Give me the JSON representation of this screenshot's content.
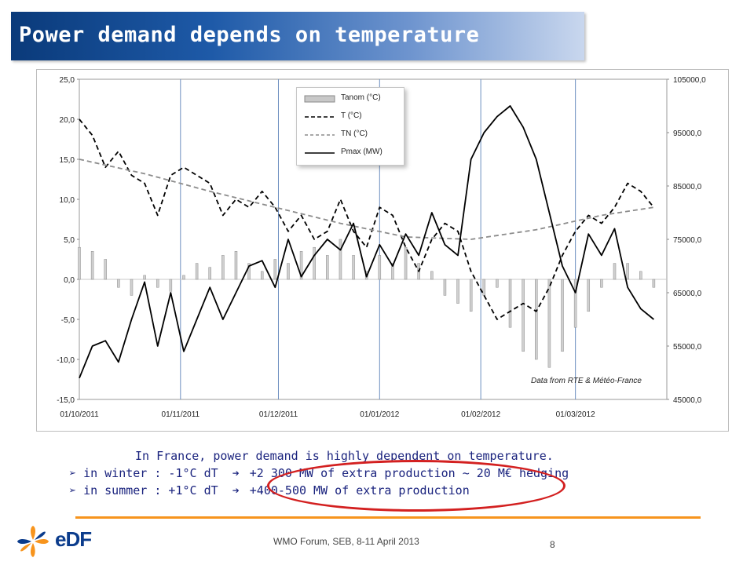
{
  "slide": {
    "title": "Power demand depends on temperature",
    "caption_line": "In France, power demand is highly dependent on temperature.",
    "bullets": [
      "in winter : -1°C dT",
      "+2 300 MW of extra production",
      "~ 20 M€ hedging",
      "in summer : +1°C dT",
      "+400-500 MW of extra production"
    ],
    "footer": "WMO Forum, SEB, 8-11 April 2013",
    "page_number": "8",
    "logo_text": "eDF",
    "source_note": "Data from RTE & Météo-France",
    "colors": {
      "title_start": "#0a3a7a",
      "caption": "#1a237e",
      "highlight": "#d32020",
      "rule": "#f7941d"
    }
  },
  "chart_data": {
    "type": "line",
    "x_ticks": [
      "01/10/2011",
      "01/11/2011",
      "01/12/2011",
      "01/01/2012",
      "01/02/2012",
      "01/03/2012"
    ],
    "y_left": {
      "ticks": [
        "25,0",
        "20,0",
        "15,0",
        "10,0",
        "5,0",
        "0,0",
        "-5,0",
        "-10,0",
        "-15,0"
      ],
      "lim": [
        -15,
        25
      ]
    },
    "y_right": {
      "ticks": [
        "105000,0",
        "95000,0",
        "85000,0",
        "75000,0",
        "65000,0",
        "55000,0",
        "45000,0"
      ],
      "lim": [
        45000,
        105000
      ]
    },
    "legend_location": "top-center",
    "vertical_gridlines": true,
    "series": [
      {
        "name": "Tanom (°C)",
        "kind": "bar",
        "axis": "left",
        "color": "#a8a8a8",
        "x": [
          0,
          4,
          8,
          12,
          16,
          20,
          24,
          28,
          32,
          36,
          40,
          44,
          48,
          52,
          56,
          60,
          64,
          68,
          72,
          76,
          80,
          84,
          88,
          92,
          96,
          100,
          104,
          108,
          112,
          116,
          120,
          124,
          128,
          132,
          136,
          140,
          144,
          148,
          152,
          156,
          160,
          164,
          168,
          172,
          176
        ],
        "values": [
          4,
          3.5,
          2.5,
          -1,
          -2,
          0.5,
          -1,
          -1.5,
          0.5,
          2,
          1.5,
          3,
          3.5,
          2,
          1,
          2.5,
          2,
          3.5,
          4,
          3,
          5,
          3,
          1,
          3,
          2,
          4,
          2,
          1,
          -2,
          -3,
          -4,
          -2,
          -1,
          -6,
          -9,
          -10,
          -11,
          -9,
          -6,
          -4,
          -1,
          2,
          2,
          1,
          -1
        ]
      },
      {
        "name": "T (°C)",
        "kind": "line",
        "dash": "dashed",
        "axis": "left",
        "color": "#000000",
        "x": [
          0,
          4,
          8,
          12,
          16,
          20,
          24,
          28,
          32,
          36,
          40,
          44,
          48,
          52,
          56,
          60,
          64,
          68,
          72,
          76,
          80,
          84,
          88,
          92,
          96,
          100,
          104,
          108,
          112,
          116,
          120,
          124,
          128,
          132,
          136,
          140,
          144,
          148,
          152,
          156,
          160,
          164,
          168,
          172,
          176
        ],
        "values": [
          20,
          18,
          14,
          16,
          13,
          12,
          8,
          13,
          14,
          13,
          12,
          8,
          10,
          9,
          11,
          9,
          6,
          8,
          5,
          6,
          10,
          6,
          4,
          9,
          8,
          4,
          1,
          5,
          7,
          6,
          1,
          -2,
          -5,
          -4,
          -3,
          -4,
          -1,
          3,
          6,
          8,
          7,
          9,
          12,
          11,
          9
        ]
      },
      {
        "name": "TN (°C)",
        "kind": "line",
        "dash": "dashed",
        "axis": "left",
        "color": "#8c8c8c",
        "x": [
          0,
          20,
          40,
          60,
          80,
          100,
          120,
          140,
          160,
          176
        ],
        "values": [
          15,
          13.2,
          11,
          9,
          7,
          5.3,
          5,
          6.2,
          8,
          9
        ]
      },
      {
        "name": "Pmax (MW)",
        "kind": "line",
        "dash": "solid",
        "axis": "right",
        "color": "#000000",
        "x": [
          0,
          4,
          8,
          12,
          16,
          20,
          24,
          28,
          32,
          36,
          40,
          44,
          48,
          52,
          56,
          60,
          64,
          68,
          72,
          76,
          80,
          84,
          88,
          92,
          96,
          100,
          104,
          108,
          112,
          116,
          120,
          124,
          128,
          132,
          136,
          140,
          144,
          148,
          152,
          156,
          160,
          164,
          168,
          172,
          176
        ],
        "values": [
          49000,
          55000,
          56000,
          52000,
          60000,
          67000,
          55000,
          65000,
          54000,
          60000,
          66000,
          60000,
          65000,
          70000,
          71000,
          66000,
          75000,
          68000,
          72000,
          75000,
          73000,
          78000,
          68000,
          74000,
          70000,
          76000,
          72000,
          80000,
          74000,
          72000,
          90000,
          95000,
          98000,
          100000,
          96000,
          90000,
          80000,
          70000,
          65000,
          76000,
          72000,
          77000,
          66000,
          62000,
          60000
        ]
      }
    ]
  }
}
